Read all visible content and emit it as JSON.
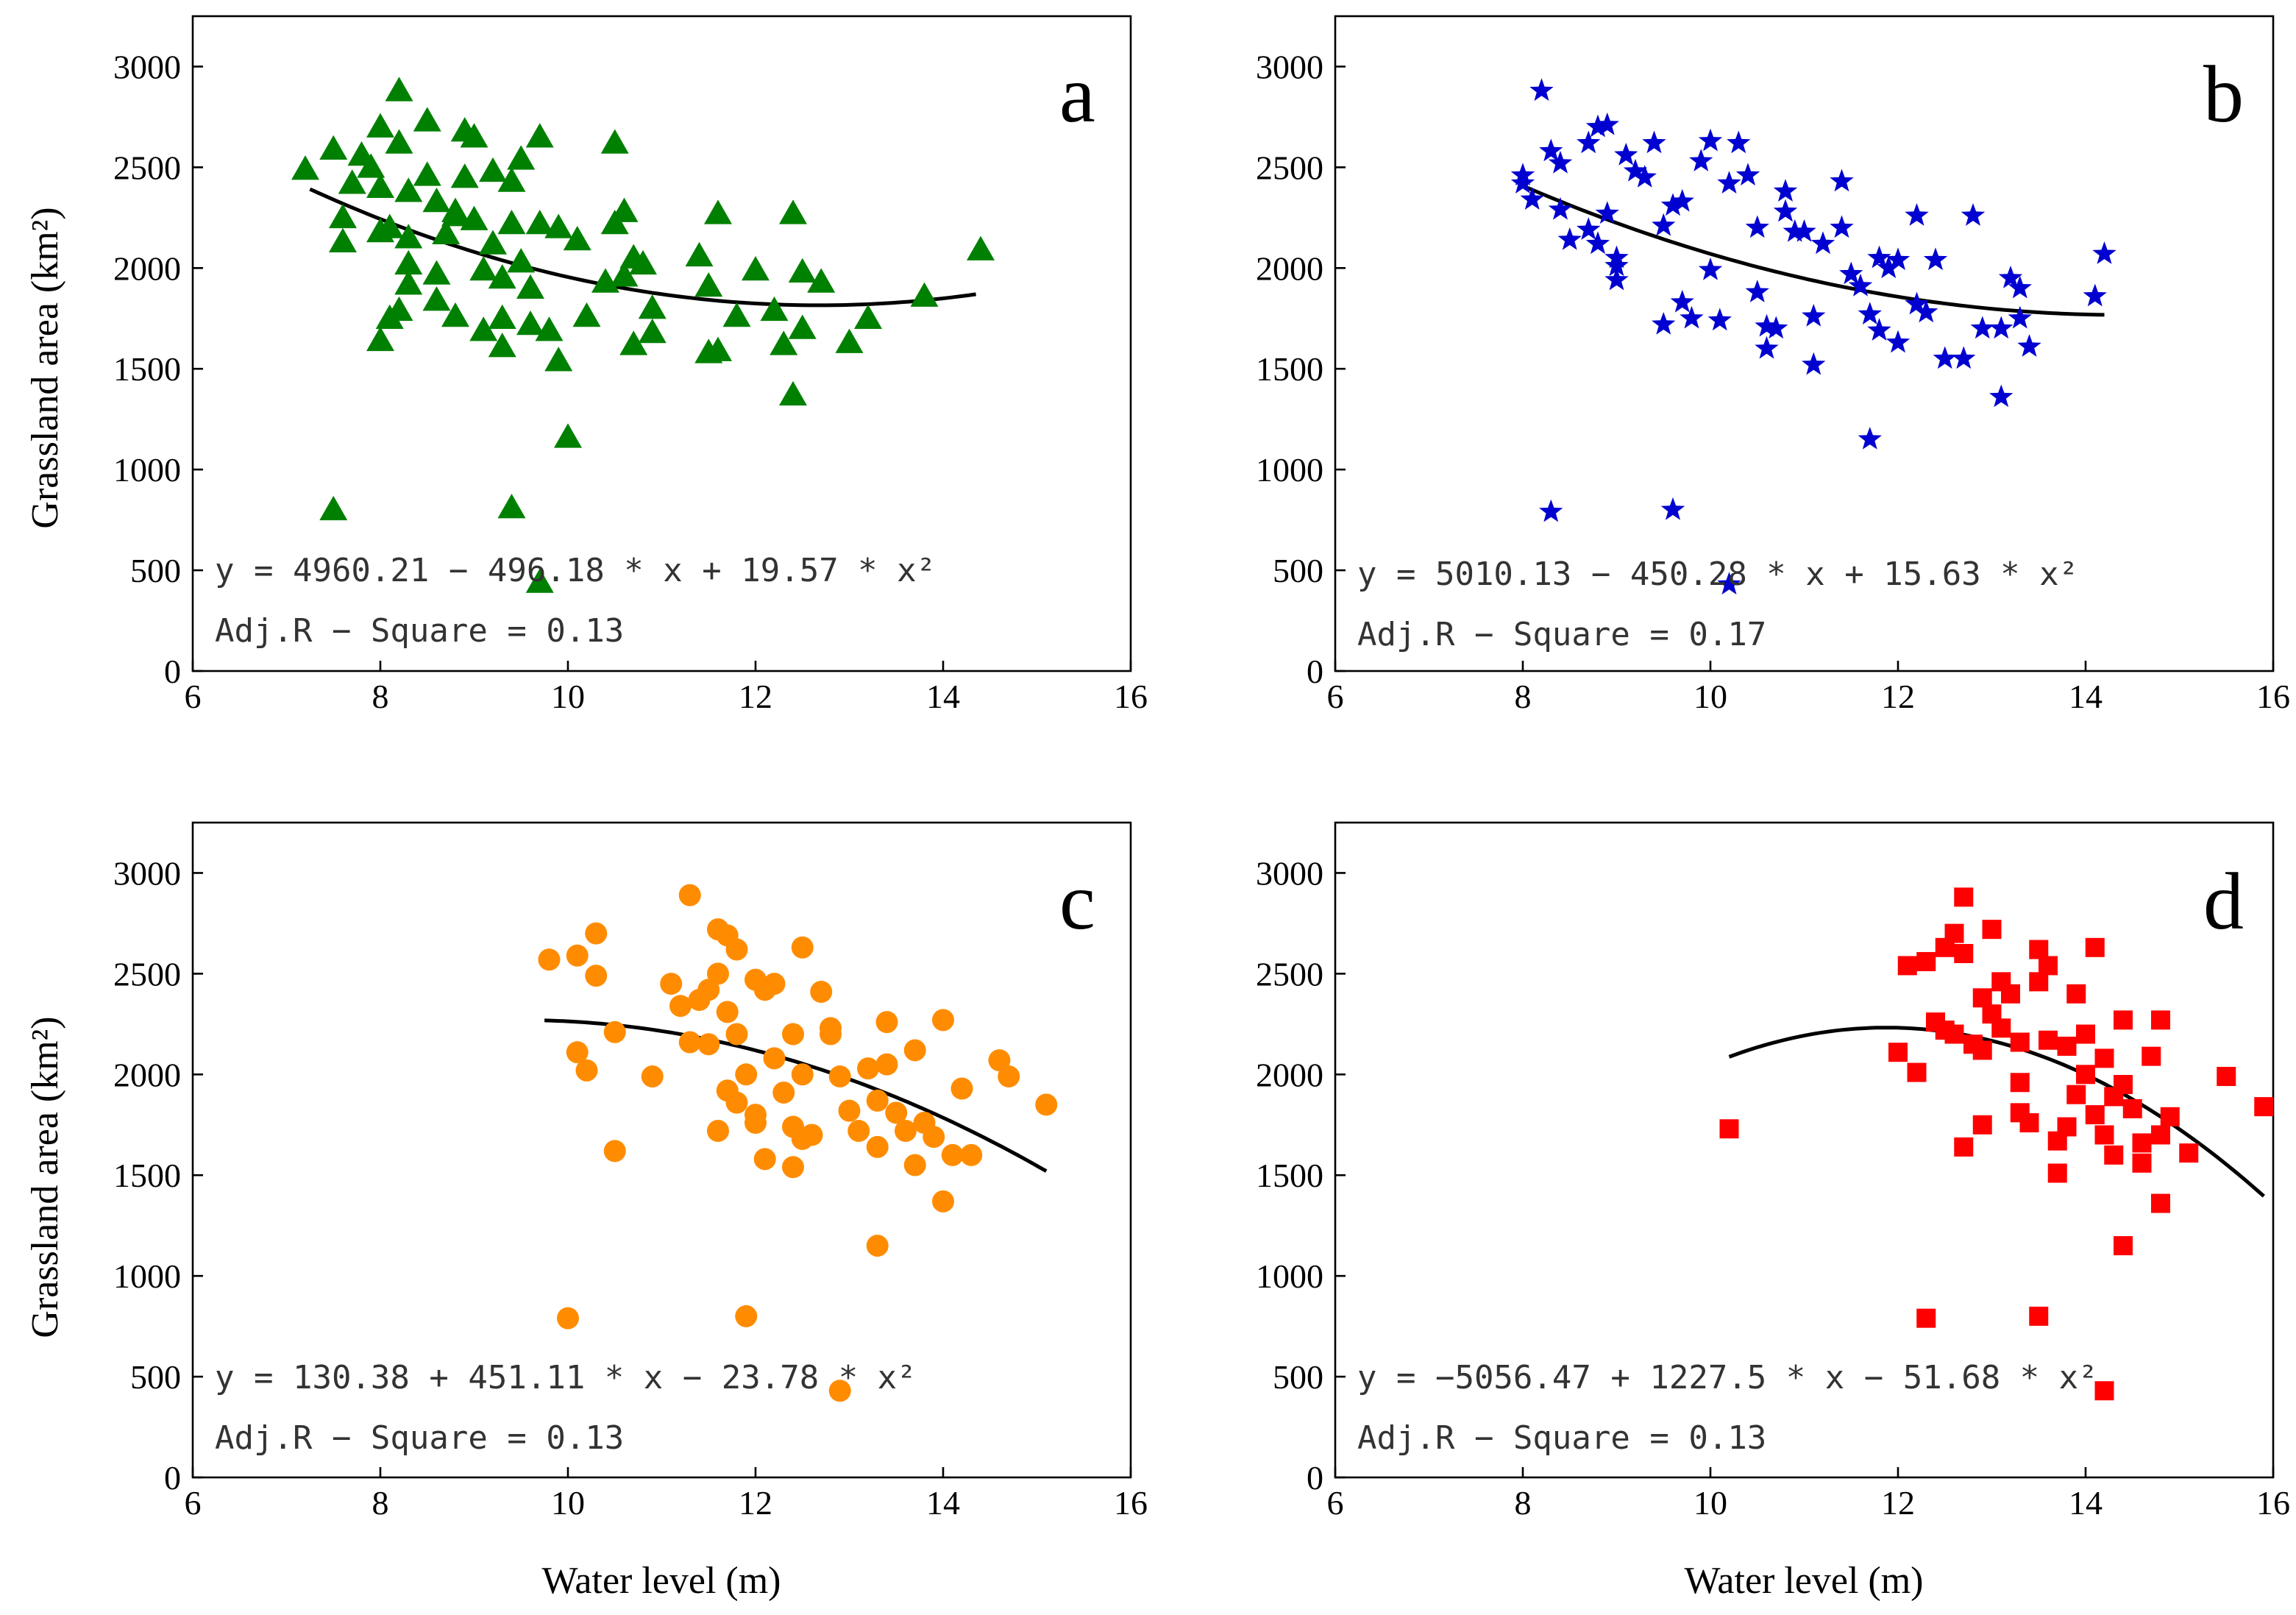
{
  "chart_data": [
    {
      "type": "scatter",
      "panel": "a",
      "marker": "triangle",
      "color": "#008000",
      "xlabel": "",
      "ylabel": "Grassland area (km²)",
      "xlim": [
        6,
        16
      ],
      "ylim": [
        0,
        3250
      ],
      "xticks": [
        6,
        8,
        10,
        12,
        14,
        16
      ],
      "yticks": [
        0,
        500,
        1000,
        1500,
        2000,
        2500,
        3000
      ],
      "fit": {
        "type": "quadratic",
        "coef": [
          4960.21,
          -496.18,
          19.57
        ],
        "xrange": [
          7.25,
          14.35
        ]
      },
      "equation": "y = 4960.21 − 496.18 * x + 19.57 * x²",
      "adj_r2_text": "Adj.R − Square = 0.13",
      "points": [
        [
          7.2,
          2490
        ],
        [
          7.5,
          2590
        ],
        [
          7.7,
          2420
        ],
        [
          7.8,
          2560
        ],
        [
          7.6,
          2250
        ],
        [
          7.6,
          2130
        ],
        [
          7.9,
          2500
        ],
        [
          8.0,
          2700
        ],
        [
          8.0,
          2400
        ],
        [
          8.0,
          2180
        ],
        [
          8.2,
          2880
        ],
        [
          8.2,
          2620
        ],
        [
          8.3,
          2380
        ],
        [
          8.1,
          2200
        ],
        [
          8.3,
          2020
        ],
        [
          8.3,
          1920
        ],
        [
          8.2,
          1790
        ],
        [
          8.1,
          1750
        ],
        [
          8.0,
          1640
        ],
        [
          8.3,
          2150
        ],
        [
          8.5,
          2730
        ],
        [
          8.5,
          2460
        ],
        [
          8.6,
          2330
        ],
        [
          8.7,
          2170
        ],
        [
          8.6,
          1970
        ],
        [
          8.6,
          1840
        ],
        [
          8.8,
          1760
        ],
        [
          8.9,
          2680
        ],
        [
          8.9,
          2450
        ],
        [
          8.8,
          2280
        ],
        [
          9.0,
          2240
        ],
        [
          9.1,
          1990
        ],
        [
          9.1,
          1690
        ],
        [
          9.2,
          2480
        ],
        [
          9.2,
          2120
        ],
        [
          9.3,
          1950
        ],
        [
          9.3,
          1750
        ],
        [
          9.3,
          1610
        ],
        [
          9.4,
          2430
        ],
        [
          9.4,
          2220
        ],
        [
          9.5,
          2540
        ],
        [
          9.5,
          2030
        ],
        [
          9.6,
          1900
        ],
        [
          9.6,
          1720
        ],
        [
          9.7,
          2650
        ],
        [
          9.7,
          2220
        ],
        [
          9.8,
          1690
        ],
        [
          9.9,
          2200
        ],
        [
          9.9,
          1540
        ],
        [
          10.0,
          1160
        ],
        [
          10.1,
          2140
        ],
        [
          10.2,
          1760
        ],
        [
          10.4,
          1930
        ],
        [
          10.5,
          2620
        ],
        [
          10.5,
          2220
        ],
        [
          10.6,
          2280
        ],
        [
          10.6,
          1960
        ],
        [
          10.7,
          2050
        ],
        [
          10.7,
          1620
        ],
        [
          10.8,
          2020
        ],
        [
          10.9,
          1800
        ],
        [
          10.9,
          1680
        ],
        [
          11.4,
          2060
        ],
        [
          11.5,
          1910
        ],
        [
          11.5,
          1580
        ],
        [
          11.6,
          2270
        ],
        [
          11.6,
          1590
        ],
        [
          11.8,
          1760
        ],
        [
          12.0,
          1990
        ],
        [
          12.2,
          1790
        ],
        [
          12.3,
          1620
        ],
        [
          12.4,
          2270
        ],
        [
          12.5,
          1980
        ],
        [
          12.5,
          1700
        ],
        [
          12.4,
          1370
        ],
        [
          12.7,
          1930
        ],
        [
          13.0,
          1630
        ],
        [
          13.2,
          1750
        ],
        [
          13.8,
          1860
        ],
        [
          14.4,
          2090
        ],
        [
          7.5,
          800
        ],
        [
          9.4,
          810
        ],
        [
          9.7,
          440
        ],
        [
          8.8,
          2260
        ],
        [
          9.0,
          2650
        ]
      ]
    },
    {
      "type": "scatter",
      "panel": "b",
      "marker": "star",
      "color": "#0000d0",
      "xlabel": "",
      "ylabel": "",
      "xlim": [
        6,
        16
      ],
      "ylim": [
        0,
        3250
      ],
      "xticks": [
        6,
        8,
        10,
        12,
        14,
        16
      ],
      "yticks": [
        0,
        500,
        1000,
        1500,
        2000,
        2500,
        3000
      ],
      "fit": {
        "type": "quadratic",
        "coef": [
          5010.13,
          -450.28,
          15.63
        ],
        "xrange": [
          8.05,
          14.2
        ]
      },
      "equation": "y = 5010.13 − 450.28 * x + 15.63 * x²",
      "adj_r2_text": "Adj.R − Square = 0.17",
      "points": [
        [
          8.0,
          2420
        ],
        [
          8.1,
          2340
        ],
        [
          8.2,
          2880
        ],
        [
          8.3,
          2580
        ],
        [
          8.4,
          2520
        ],
        [
          8.4,
          2290
        ],
        [
          8.5,
          2140
        ],
        [
          8.7,
          2620
        ],
        [
          8.8,
          2700
        ],
        [
          8.9,
          2710
        ],
        [
          8.7,
          2190
        ],
        [
          8.8,
          2120
        ],
        [
          8.9,
          2270
        ],
        [
          9.0,
          2010
        ],
        [
          9.0,
          1940
        ],
        [
          9.1,
          2560
        ],
        [
          9.2,
          2480
        ],
        [
          9.3,
          2450
        ],
        [
          9.4,
          2620
        ],
        [
          9.5,
          2210
        ],
        [
          9.5,
          1720
        ],
        [
          9.6,
          2310
        ],
        [
          9.7,
          2330
        ],
        [
          9.7,
          1830
        ],
        [
          9.8,
          1750
        ],
        [
          9.9,
          2530
        ],
        [
          10.0,
          2630
        ],
        [
          10.0,
          1990
        ],
        [
          10.1,
          1740
        ],
        [
          10.2,
          2420
        ],
        [
          10.3,
          2620
        ],
        [
          10.4,
          2460
        ],
        [
          10.5,
          2200
        ],
        [
          10.5,
          1880
        ],
        [
          10.6,
          1710
        ],
        [
          10.6,
          1600
        ],
        [
          10.7,
          1700
        ],
        [
          10.8,
          2380
        ],
        [
          10.8,
          2280
        ],
        [
          10.9,
          2180
        ],
        [
          11.0,
          2180
        ],
        [
          11.1,
          1760
        ],
        [
          11.1,
          1520
        ],
        [
          11.2,
          2120
        ],
        [
          11.4,
          2430
        ],
        [
          11.4,
          2200
        ],
        [
          11.5,
          1970
        ],
        [
          11.6,
          1910
        ],
        [
          11.7,
          1770
        ],
        [
          11.8,
          2050
        ],
        [
          11.8,
          1690
        ],
        [
          11.9,
          2000
        ],
        [
          12.0,
          2040
        ],
        [
          12.0,
          1630
        ],
        [
          12.2,
          2260
        ],
        [
          12.2,
          1820
        ],
        [
          12.3,
          1780
        ],
        [
          12.4,
          2040
        ],
        [
          12.5,
          1550
        ],
        [
          12.7,
          1550
        ],
        [
          12.8,
          2260
        ],
        [
          12.9,
          1700
        ],
        [
          13.1,
          1700
        ],
        [
          13.2,
          1950
        ],
        [
          13.3,
          1900
        ],
        [
          13.3,
          1750
        ],
        [
          13.4,
          1610
        ],
        [
          14.1,
          1860
        ],
        [
          14.2,
          2070
        ],
        [
          13.1,
          1360
        ],
        [
          11.7,
          1150
        ],
        [
          8.3,
          790
        ],
        [
          9.6,
          800
        ],
        [
          10.2,
          430
        ],
        [
          8.0,
          2460
        ],
        [
          9.0,
          2050
        ]
      ]
    },
    {
      "type": "scatter",
      "panel": "c",
      "marker": "circle",
      "color": "#ff8c00",
      "xlabel": "Water level (m)",
      "ylabel": "Grassland area (km²)",
      "xlim": [
        6,
        16
      ],
      "ylim": [
        0,
        3250
      ],
      "xticks": [
        6,
        8,
        10,
        12,
        14,
        16
      ],
      "yticks": [
        0,
        500,
        1000,
        1500,
        2000,
        2500,
        3000
      ],
      "fit": {
        "type": "quadratic",
        "coef": [
          130.38,
          451.11,
          -23.78
        ],
        "xrange": [
          9.75,
          15.1
        ]
      },
      "equation": "y = 130.38 + 451.11 * x − 23.78 * x²",
      "adj_r2_text": "Adj.R − Square = 0.13",
      "points": [
        [
          9.8,
          2570
        ],
        [
          10.1,
          2590
        ],
        [
          10.3,
          2700
        ],
        [
          10.3,
          2490
        ],
        [
          10.1,
          2110
        ],
        [
          10.2,
          2020
        ],
        [
          10.5,
          2210
        ],
        [
          10.5,
          1620
        ],
        [
          10.9,
          1990
        ],
        [
          11.1,
          2450
        ],
        [
          11.2,
          2340
        ],
        [
          11.3,
          2890
        ],
        [
          11.3,
          2160
        ],
        [
          11.4,
          2370
        ],
        [
          11.5,
          2420
        ],
        [
          11.5,
          2150
        ],
        [
          11.6,
          2720
        ],
        [
          11.6,
          2500
        ],
        [
          11.7,
          2690
        ],
        [
          11.7,
          2310
        ],
        [
          11.8,
          2620
        ],
        [
          11.8,
          2200
        ],
        [
          11.7,
          1920
        ],
        [
          11.6,
          1720
        ],
        [
          11.8,
          1860
        ],
        [
          11.9,
          2000
        ],
        [
          12.0,
          2470
        ],
        [
          12.0,
          1760
        ],
        [
          12.1,
          2420
        ],
        [
          12.1,
          1580
        ],
        [
          12.2,
          2450
        ],
        [
          12.2,
          2080
        ],
        [
          12.3,
          1910
        ],
        [
          12.4,
          2200
        ],
        [
          12.4,
          1740
        ],
        [
          12.5,
          2630
        ],
        [
          12.5,
          2000
        ],
        [
          12.5,
          1680
        ],
        [
          12.6,
          1700
        ],
        [
          12.7,
          2410
        ],
        [
          12.8,
          2230
        ],
        [
          12.8,
          2200
        ],
        [
          12.9,
          1990
        ],
        [
          13.0,
          1820
        ],
        [
          13.1,
          1720
        ],
        [
          13.2,
          2030
        ],
        [
          13.3,
          1870
        ],
        [
          13.3,
          1640
        ],
        [
          13.4,
          2260
        ],
        [
          13.4,
          2050
        ],
        [
          13.5,
          1810
        ],
        [
          13.6,
          1720
        ],
        [
          13.7,
          2120
        ],
        [
          13.7,
          1550
        ],
        [
          13.8,
          1760
        ],
        [
          13.9,
          1690
        ],
        [
          14.0,
          1370
        ],
        [
          14.0,
          2270
        ],
        [
          14.1,
          1600
        ],
        [
          14.2,
          1930
        ],
        [
          14.3,
          1600
        ],
        [
          14.6,
          2070
        ],
        [
          14.7,
          1990
        ],
        [
          15.1,
          1850
        ],
        [
          13.3,
          1150
        ],
        [
          10.0,
          790
        ],
        [
          11.9,
          800
        ],
        [
          12.9,
          430
        ],
        [
          12.4,
          1540
        ],
        [
          12.0,
          1800
        ]
      ]
    },
    {
      "type": "scatter",
      "panel": "d",
      "marker": "square",
      "color": "#ff0000",
      "xlabel": "Water level (m)",
      "ylabel": "",
      "xlim": [
        6,
        16
      ],
      "ylim": [
        0,
        3250
      ],
      "xticks": [
        6,
        8,
        10,
        12,
        14,
        16
      ],
      "yticks": [
        0,
        500,
        1000,
        1500,
        2000,
        2500,
        3000
      ],
      "fit": {
        "type": "quadratic",
        "coef": [
          -5056.47,
          1227.5,
          -51.68
        ],
        "xrange": [
          10.2,
          15.9
        ]
      },
      "equation": "y = −5056.47 + 1227.5 * x − 51.68 * x²",
      "adj_r2_text": "Adj.R − Square = 0.13",
      "points": [
        [
          10.2,
          1730
        ],
        [
          12.0,
          2110
        ],
        [
          12.1,
          2540
        ],
        [
          12.2,
          2010
        ],
        [
          12.3,
          2560
        ],
        [
          12.4,
          2260
        ],
        [
          12.5,
          2630
        ],
        [
          12.6,
          2700
        ],
        [
          12.6,
          2200
        ],
        [
          12.7,
          2880
        ],
        [
          12.7,
          2600
        ],
        [
          12.8,
          2150
        ],
        [
          12.7,
          1640
        ],
        [
          12.9,
          2380
        ],
        [
          12.9,
          2120
        ],
        [
          12.9,
          1750
        ],
        [
          13.0,
          2720
        ],
        [
          13.0,
          2300
        ],
        [
          13.1,
          2460
        ],
        [
          13.1,
          2230
        ],
        [
          13.2,
          2400
        ],
        [
          13.3,
          2160
        ],
        [
          13.3,
          1960
        ],
        [
          13.3,
          1810
        ],
        [
          13.4,
          1760
        ],
        [
          13.5,
          2620
        ],
        [
          13.5,
          2460
        ],
        [
          13.6,
          2540
        ],
        [
          13.6,
          2170
        ],
        [
          13.7,
          1670
        ],
        [
          13.7,
          1510
        ],
        [
          13.8,
          2140
        ],
        [
          13.9,
          2400
        ],
        [
          13.9,
          1900
        ],
        [
          14.0,
          2200
        ],
        [
          14.0,
          2000
        ],
        [
          14.1,
          2630
        ],
        [
          14.1,
          1800
        ],
        [
          14.2,
          2080
        ],
        [
          14.2,
          1700
        ],
        [
          14.3,
          1890
        ],
        [
          14.3,
          1600
        ],
        [
          14.4,
          2270
        ],
        [
          14.4,
          1950
        ],
        [
          14.5,
          1830
        ],
        [
          14.6,
          1560
        ],
        [
          14.6,
          1660
        ],
        [
          14.7,
          2090
        ],
        [
          14.8,
          2270
        ],
        [
          14.8,
          1700
        ],
        [
          14.8,
          1360
        ],
        [
          14.9,
          1790
        ],
        [
          15.1,
          1610
        ],
        [
          15.5,
          1990
        ],
        [
          15.9,
          1840
        ],
        [
          14.4,
          1150
        ],
        [
          12.3,
          790
        ],
        [
          13.5,
          800
        ],
        [
          14.2,
          430
        ],
        [
          13.8,
          1740
        ],
        [
          12.5,
          2220
        ]
      ]
    }
  ],
  "panels": [
    {
      "letter": "a"
    },
    {
      "letter": "b"
    },
    {
      "letter": "c"
    },
    {
      "letter": "d"
    }
  ]
}
